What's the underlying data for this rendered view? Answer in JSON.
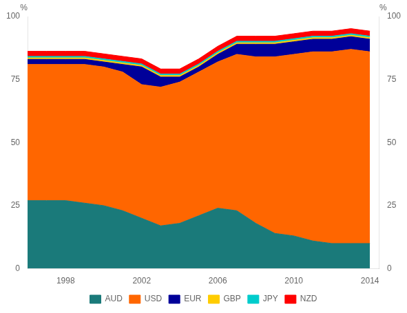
{
  "chart_data": {
    "type": "area",
    "stacked": true,
    "x": [
      1996,
      1997,
      1998,
      1999,
      2000,
      2001,
      2002,
      2003,
      2004,
      2005,
      2006,
      2007,
      2008,
      2009,
      2010,
      2011,
      2012,
      2013,
      2014
    ],
    "series": [
      {
        "name": "AUD",
        "color": "#1a7a7a",
        "values": [
          27,
          27,
          27,
          26,
          25,
          23,
          20,
          17,
          18,
          21,
          24,
          23,
          18,
          14,
          13,
          11,
          10,
          10,
          10
        ]
      },
      {
        "name": "USD",
        "color": "#ff6600",
        "values": [
          54,
          54,
          54,
          55,
          55,
          55,
          53,
          55,
          56,
          57,
          58,
          62,
          66,
          70,
          72,
          75,
          76,
          77,
          76
        ]
      },
      {
        "name": "EUR",
        "color": "#000099",
        "values": [
          2,
          2,
          2,
          2,
          2,
          3,
          7,
          4,
          2,
          2,
          3,
          4,
          5,
          5,
          5,
          5,
          5,
          5,
          5
        ]
      },
      {
        "name": "GBP",
        "color": "#ffcc00",
        "values": [
          0.6,
          0.6,
          0.6,
          0.6,
          0.6,
          0.6,
          0.6,
          0.6,
          0.6,
          0.6,
          0.6,
          0.6,
          0.6,
          0.6,
          0.6,
          0.6,
          0.6,
          0.6,
          0.6
        ]
      },
      {
        "name": "JPY",
        "color": "#00cccc",
        "values": [
          0.6,
          0.6,
          0.6,
          0.6,
          0.6,
          0.6,
          0.6,
          0.6,
          0.6,
          0.6,
          0.6,
          0.6,
          0.6,
          0.6,
          0.6,
          0.6,
          0.6,
          0.6,
          0.6
        ]
      },
      {
        "name": "NZD",
        "color": "#ff0000",
        "values": [
          2,
          2,
          2,
          2,
          2,
          2,
          2,
          2,
          2,
          2,
          2,
          2,
          2,
          2,
          2,
          2,
          2,
          2,
          2
        ]
      }
    ],
    "xlim": [
      1996.0,
      2014.5
    ],
    "xticks": [
      1998,
      2002,
      2006,
      2010,
      2014
    ],
    "ylim": [
      0,
      100
    ],
    "yticks": [
      0,
      25,
      50,
      75,
      100
    ],
    "y2lim": [
      0,
      100
    ],
    "y2ticks": [
      0,
      25,
      50,
      75,
      100
    ],
    "ylabel": "%",
    "y2label": "%",
    "legend": "bottom",
    "grid": false
  }
}
